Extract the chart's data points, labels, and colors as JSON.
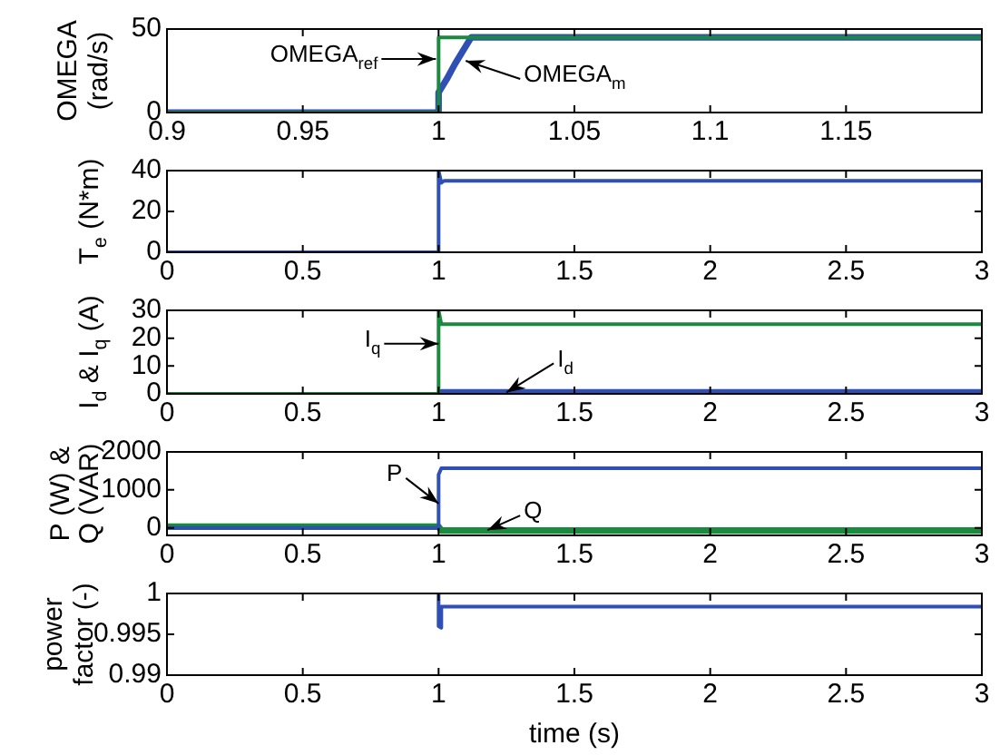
{
  "chart_data": [
    {
      "type": "line",
      "ylabel": "OMEGA\n(rad/s)",
      "xlim": [
        0.9,
        1.2
      ],
      "xticks": [
        0.9,
        0.95,
        1,
        1.05,
        1.1,
        1.15
      ],
      "ylim": [
        0,
        50
      ],
      "yticks": [
        0,
        50
      ],
      "grid": false,
      "legend": false,
      "series": [
        {
          "color": "#2f4fb5",
          "x": [
            0.9,
            1,
            1,
            1.003,
            1.006,
            1.009,
            1.012,
            1.2
          ],
          "values": [
            0,
            0,
            12,
            20,
            29,
            37,
            45,
            45
          ]
        },
        {
          "color": "#1a8a3e",
          "x": [
            0.9,
            1,
            1,
            1.2
          ],
          "values": [
            0,
            0,
            45,
            45
          ]
        }
      ],
      "annotations": [
        {
          "text": "OMEGA$_{ref}$",
          "x": 0.999,
          "y": 32
        },
        {
          "text": "OMEGA$_{m}$",
          "x": 1.01,
          "y": 31
        }
      ]
    },
    {
      "type": "line",
      "ylabel": "T$_{e}$ (N*m)",
      "xlim": [
        0,
        3
      ],
      "xticks": [
        0,
        0.5,
        1,
        1.5,
        2,
        2.5,
        3
      ],
      "ylim": [
        0,
        40
      ],
      "yticks": [
        0,
        20,
        40
      ],
      "grid": false,
      "legend": false,
      "series": [
        {
          "color": "#2f4fb5",
          "x": [
            0,
            1,
            1,
            1.01,
            1.02,
            3
          ],
          "values": [
            0,
            0,
            40,
            34,
            35,
            35
          ]
        }
      ]
    },
    {
      "type": "line",
      "ylabel": "I$_{d}$ & I$_{q}$ (A)",
      "xlim": [
        0,
        3
      ],
      "xticks": [
        0,
        0.5,
        1,
        1.5,
        2,
        2.5,
        3
      ],
      "ylim": [
        0,
        30
      ],
      "yticks": [
        0,
        10,
        20,
        30
      ],
      "grid": false,
      "legend": false,
      "series": [
        {
          "color": "#2f4fb5",
          "x": [
            1,
            1.01,
            3
          ],
          "values": [
            0,
            0.5,
            0.5
          ]
        },
        {
          "color": "#1a8a3e",
          "x": [
            0,
            1,
            1,
            1.01,
            1.02,
            3
          ],
          "values": [
            0,
            0,
            30,
            25,
            25,
            25
          ]
        }
      ],
      "annotations": [
        {
          "text": "I$_{q}$",
          "x": 1,
          "y": 18
        },
        {
          "text": "I$_{d}$",
          "x": 1.25,
          "y": 0.5
        }
      ]
    },
    {
      "type": "line",
      "ylabel": "P (W) &\nQ (VAR)",
      "xlim": [
        0,
        3
      ],
      "xticks": [
        0,
        0.5,
        1,
        1.5,
        2,
        2.5,
        3
      ],
      "ylim": [
        -200,
        2000
      ],
      "yticks": [
        0,
        1000,
        2000
      ],
      "grid": false,
      "legend": false,
      "series": [
        {
          "color": "#1a8a3e",
          "x": [
            0,
            1,
            1.01,
            3
          ],
          "values": [
            30,
            30,
            -70,
            -70
          ]
        },
        {
          "color": "#2f4fb5",
          "x": [
            0,
            1,
            1,
            1.01,
            1.02,
            3
          ],
          "values": [
            0,
            0,
            1400,
            1570,
            1570,
            1570
          ]
        }
      ],
      "annotations": [
        {
          "text": "P",
          "x": 1,
          "y": 640
        },
        {
          "text": "Q",
          "x": 1.18,
          "y": -60
        }
      ]
    },
    {
      "type": "line",
      "ylabel": "power\nfactor (-)",
      "xlabel": "time (s)",
      "xlim": [
        0,
        3
      ],
      "xticks": [
        0,
        0.5,
        1,
        1.5,
        2,
        2.5,
        3
      ],
      "ylim": [
        0.99,
        1
      ],
      "yticks": [
        0.99,
        0.995,
        1
      ],
      "grid": false,
      "legend": false,
      "series": [
        {
          "color": "#2f4fb5",
          "x": [
            1,
            1,
            1.01,
            1.01,
            1.02,
            3
          ],
          "values": [
            1,
            0.996,
            0.9958,
            0.9984,
            0.9984,
            0.9984
          ]
        }
      ]
    }
  ]
}
